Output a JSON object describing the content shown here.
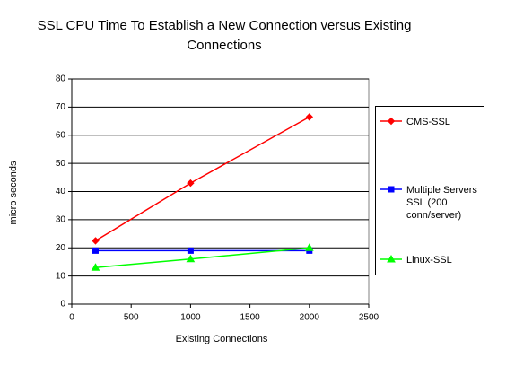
{
  "chart_data": {
    "type": "line",
    "title": "SSL CPU Time To Establish a New Connection versus Existing Connections",
    "x_label": "Existing Connections",
    "y_label": "micro seconds",
    "x": [
      200,
      1000,
      2000
    ],
    "series": [
      {
        "name": "CMS-SSL",
        "color": "#ff0000",
        "marker": "diamond",
        "values": [
          22.5,
          43,
          66.5
        ]
      },
      {
        "name": "Multiple Servers SSL (200 conn/server)",
        "color": "#0000ff",
        "marker": "square",
        "values": [
          19,
          19,
          19
        ]
      },
      {
        "name": "Linux-SSL",
        "color": "#00ff00",
        "marker": "triangle",
        "values": [
          13,
          16,
          20
        ]
      }
    ],
    "xlim": [
      0,
      2500
    ],
    "xticks": [
      0,
      500,
      1000,
      1500,
      2000,
      2500
    ],
    "ylim": [
      0,
      80
    ],
    "yticks": [
      0,
      10,
      20,
      30,
      40,
      50,
      60,
      70,
      80
    ],
    "grid": true,
    "legend": "right"
  }
}
